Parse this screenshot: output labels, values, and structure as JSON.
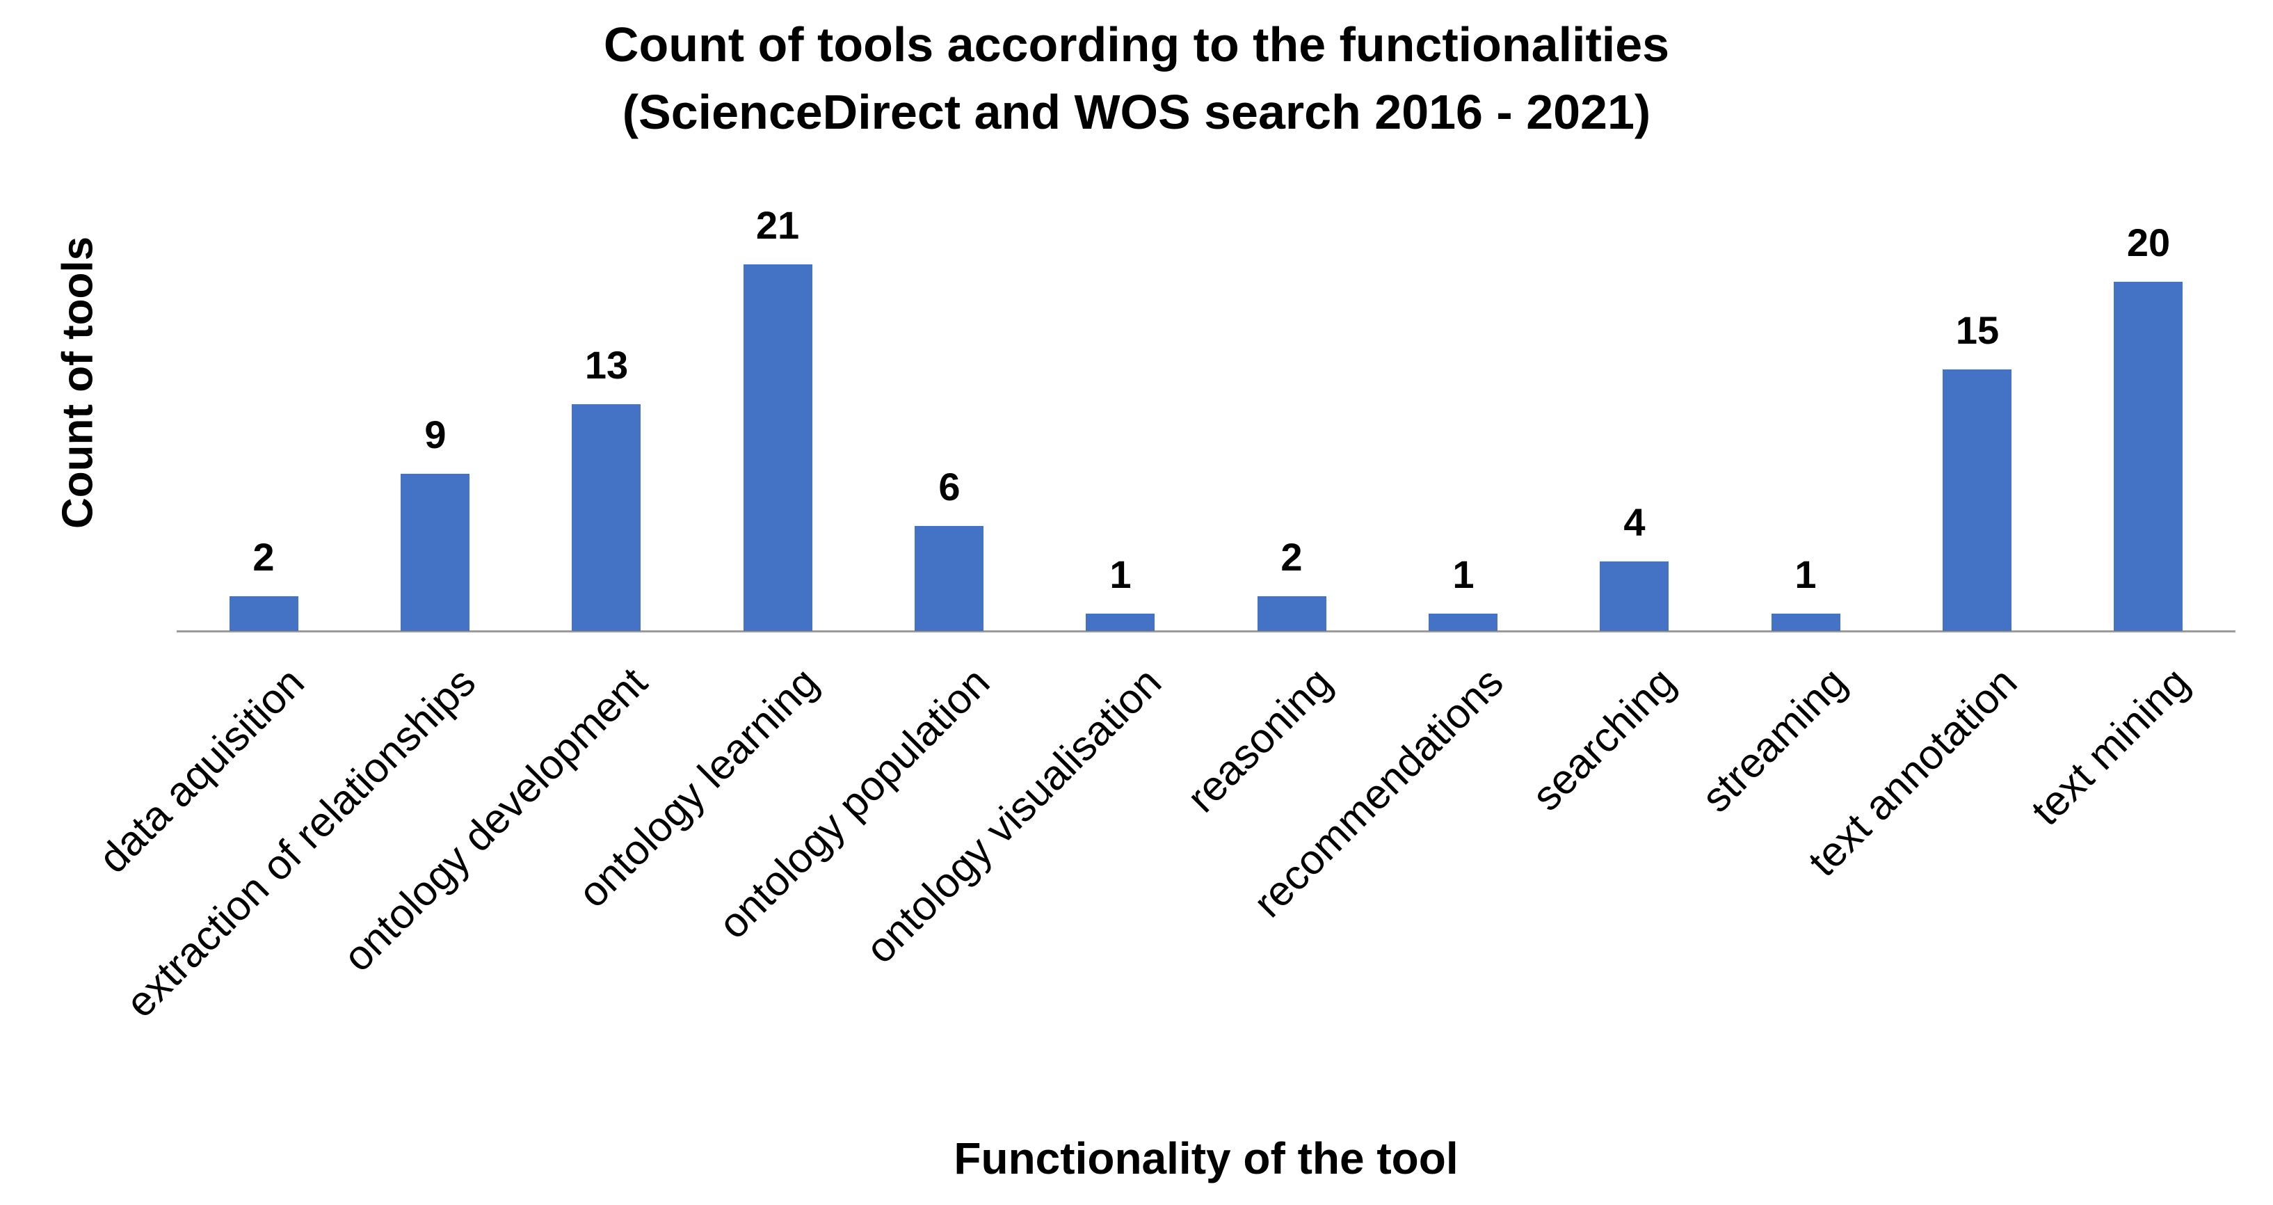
{
  "chart_data": {
    "type": "bar",
    "title": "Count of tools according to the functionalities (ScienceDirect and WOS search 2016 - 2021)",
    "title_line1": "Count of tools according to the functionalities",
    "title_line2": "(ScienceDirect and WOS search 2016 - 2021)",
    "xlabel": "Functionality of the tool",
    "ylabel": "Count of tools",
    "categories": [
      "data aquisition",
      "extraction of relationships",
      "ontology development",
      "ontology learning",
      "ontology population",
      "ontology visualisation",
      "reasoning",
      "recommendations",
      "searching",
      "streaming",
      "text annotation",
      "text mining"
    ],
    "values": [
      2,
      9,
      13,
      21,
      6,
      1,
      2,
      1,
      4,
      1,
      15,
      20
    ],
    "ylim": [
      0,
      21
    ],
    "grid": false,
    "legend": false,
    "show_data_labels": true,
    "category_label_rotation_deg": 45,
    "bar_color": "#4472C4",
    "axis_line_color": "#9b9b9b",
    "text_color": "#000000"
  }
}
